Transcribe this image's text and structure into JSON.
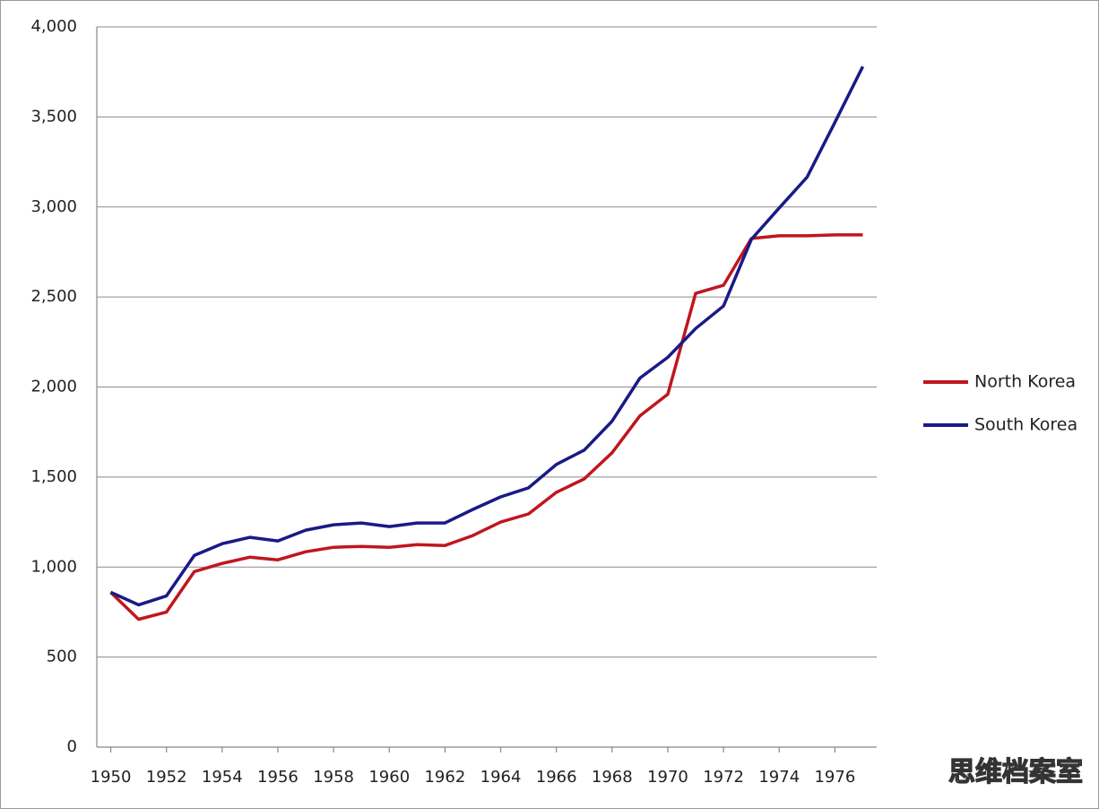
{
  "chart_data": {
    "type": "line",
    "x": [
      1950,
      1951,
      1952,
      1953,
      1954,
      1955,
      1956,
      1957,
      1958,
      1959,
      1960,
      1961,
      1962,
      1963,
      1964,
      1965,
      1966,
      1967,
      1968,
      1969,
      1970,
      1971,
      1972,
      1973,
      1974,
      1975,
      1976,
      1977
    ],
    "series": [
      {
        "name": "North Korea",
        "color": "#c0161e",
        "values": [
          860,
          710,
          750,
          975,
          1020,
          1055,
          1040,
          1085,
          1110,
          1115,
          1110,
          1125,
          1120,
          1175,
          1250,
          1295,
          1415,
          1490,
          1635,
          1840,
          1960,
          2520,
          2565,
          2825,
          2840,
          2840,
          2845,
          2845
        ]
      },
      {
        "name": "South Korea",
        "color": "#1a1a86",
        "values": [
          860,
          790,
          840,
          1065,
          1130,
          1165,
          1145,
          1205,
          1235,
          1245,
          1225,
          1245,
          1245,
          1320,
          1390,
          1440,
          1570,
          1650,
          1810,
          2050,
          2165,
          2325,
          2450,
          2820,
          2995,
          3165,
          3470,
          3780
        ]
      }
    ],
    "xlim": [
      1949.5,
      1977.5
    ],
    "xticks": [
      1950,
      1952,
      1954,
      1956,
      1958,
      1960,
      1962,
      1964,
      1966,
      1968,
      1970,
      1972,
      1974,
      1976
    ],
    "ylim": [
      0,
      4000
    ],
    "yticks": [
      0,
      500,
      {
        "value": 1000,
        "label": "1,000"
      },
      {
        "value": 1500,
        "label": "1,500"
      },
      {
        "value": 2000,
        "label": "2,000"
      },
      {
        "value": 2500,
        "label": "2,500"
      },
      {
        "value": 3000,
        "label": "3,000"
      },
      {
        "value": 3500,
        "label": "3,500"
      },
      {
        "value": 4000,
        "label": "4,000"
      }
    ],
    "grid": true,
    "legend": "right",
    "watermark": "思维档案室"
  }
}
